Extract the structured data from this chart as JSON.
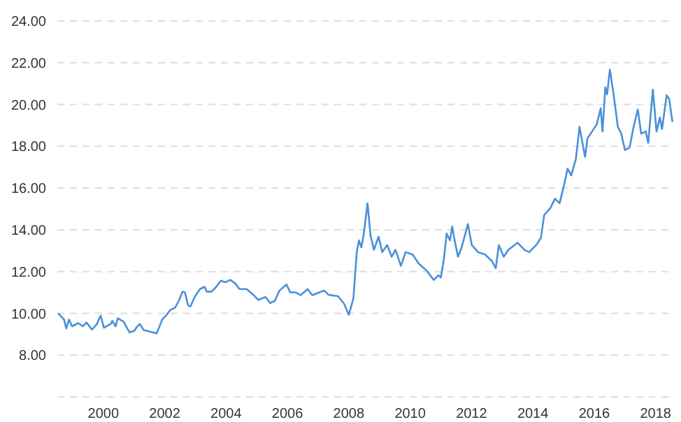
{
  "chart_data": {
    "type": "line",
    "x": [
      1998.53,
      1998.72,
      1998.79,
      1998.88,
      1998.98,
      1999.18,
      1999.33,
      1999.45,
      1999.63,
      1999.79,
      1999.91,
      2000.02,
      2000.24,
      2000.29,
      2000.4,
      2000.47,
      2000.66,
      2000.85,
      2001.01,
      2001.08,
      2001.19,
      2001.31,
      2001.54,
      2001.74,
      2001.92,
      2002.03,
      2002.18,
      2002.34,
      2002.46,
      2002.58,
      2002.66,
      2002.76,
      2002.84,
      2002.99,
      2003.15,
      2003.3,
      2003.37,
      2003.53,
      2003.68,
      2003.83,
      2003.98,
      2004.14,
      2004.29,
      2004.44,
      2004.67,
      2004.9,
      2005.05,
      2005.28,
      2005.44,
      2005.59,
      2005.74,
      2005.97,
      2006.09,
      2006.27,
      2006.43,
      2006.66,
      2006.81,
      2007.04,
      2007.19,
      2007.34,
      2007.65,
      2007.85,
      2008.0,
      2008.15,
      2008.26,
      2008.33,
      2008.41,
      2008.49,
      2008.61,
      2008.71,
      2008.82,
      2008.97,
      2009.09,
      2009.25,
      2009.4,
      2009.52,
      2009.7,
      2009.85,
      2010.08,
      2010.28,
      2010.54,
      2010.77,
      2010.92,
      2011.0,
      2011.1,
      2011.19,
      2011.3,
      2011.37,
      2011.45,
      2011.56,
      2011.68,
      2011.88,
      2012.01,
      2012.21,
      2012.44,
      2012.67,
      2012.79,
      2012.89,
      2013.05,
      2013.2,
      2013.5,
      2013.73,
      2013.88,
      2014.11,
      2014.26,
      2014.37,
      2014.57,
      2014.72,
      2014.87,
      2015.02,
      2015.13,
      2015.25,
      2015.4,
      2015.52,
      2015.7,
      2015.78,
      2015.93,
      2016.08,
      2016.21,
      2016.27,
      2016.36,
      2016.42,
      2016.51,
      2016.62,
      2016.77,
      2016.88,
      2017.0,
      2017.15,
      2017.3,
      2017.42,
      2017.53,
      2017.68,
      2017.76,
      2017.91,
      2018.03,
      2018.14,
      2018.21,
      2018.36,
      2018.44,
      2018.55
    ],
    "series": [
      {
        "color": "#4a90d9",
        "values": [
          10.0,
          9.7,
          9.27,
          9.7,
          9.38,
          9.53,
          9.38,
          9.56,
          9.22,
          9.49,
          9.89,
          9.31,
          9.49,
          9.64,
          9.38,
          9.76,
          9.6,
          9.09,
          9.16,
          9.33,
          9.49,
          9.2,
          9.11,
          9.04,
          9.71,
          9.87,
          10.16,
          10.27,
          10.6,
          11.04,
          11.0,
          10.38,
          10.33,
          10.82,
          11.16,
          11.27,
          11.04,
          11.04,
          11.27,
          11.56,
          11.49,
          11.6,
          11.44,
          11.16,
          11.16,
          10.87,
          10.64,
          10.78,
          10.49,
          10.6,
          11.09,
          11.38,
          11.0,
          11.0,
          10.87,
          11.16,
          10.87,
          11.0,
          11.09,
          10.89,
          10.82,
          10.45,
          9.93,
          10.71,
          12.93,
          13.49,
          13.16,
          13.82,
          15.27,
          13.71,
          13.04,
          13.67,
          12.93,
          13.27,
          12.71,
          13.04,
          12.27,
          12.93,
          12.82,
          12.38,
          12.04,
          11.6,
          11.82,
          11.71,
          12.6,
          13.82,
          13.49,
          14.16,
          13.49,
          12.71,
          13.16,
          14.27,
          13.27,
          12.93,
          12.82,
          12.49,
          12.16,
          13.27,
          12.71,
          13.04,
          13.38,
          13.04,
          12.93,
          13.27,
          13.6,
          14.71,
          15.04,
          15.49,
          15.27,
          16.16,
          16.93,
          16.6,
          17.38,
          18.93,
          17.49,
          18.38,
          18.71,
          19.04,
          19.82,
          18.71,
          20.82,
          20.49,
          21.67,
          20.6,
          18.93,
          18.6,
          17.82,
          17.93,
          19.04,
          19.76,
          18.6,
          18.71,
          18.16,
          20.71,
          18.71,
          19.38,
          18.82,
          20.44,
          20.27,
          19.16
        ]
      }
    ],
    "xlim": [
      1998.5,
      2018.6
    ],
    "xticks": [
      2000,
      2002,
      2004,
      2006,
      2008,
      2010,
      2012,
      2014,
      2016,
      2018
    ],
    "ylim": [
      6,
      24
    ],
    "yticks": [
      {
        "value": 6,
        "label": null
      },
      {
        "value": 8,
        "label": "8.00"
      },
      {
        "value": 10,
        "label": "10.00"
      },
      {
        "value": 12,
        "label": "12.00"
      },
      {
        "value": 14,
        "label": "14.00"
      },
      {
        "value": 16,
        "label": "16.00"
      },
      {
        "value": 18,
        "label": "18.00"
      },
      {
        "value": 20,
        "label": "20.00"
      },
      {
        "value": 22,
        "label": "22.00"
      },
      {
        "value": 24,
        "label": "24.00"
      }
    ],
    "grid": "y",
    "marker": "none",
    "line_style": "solid"
  }
}
